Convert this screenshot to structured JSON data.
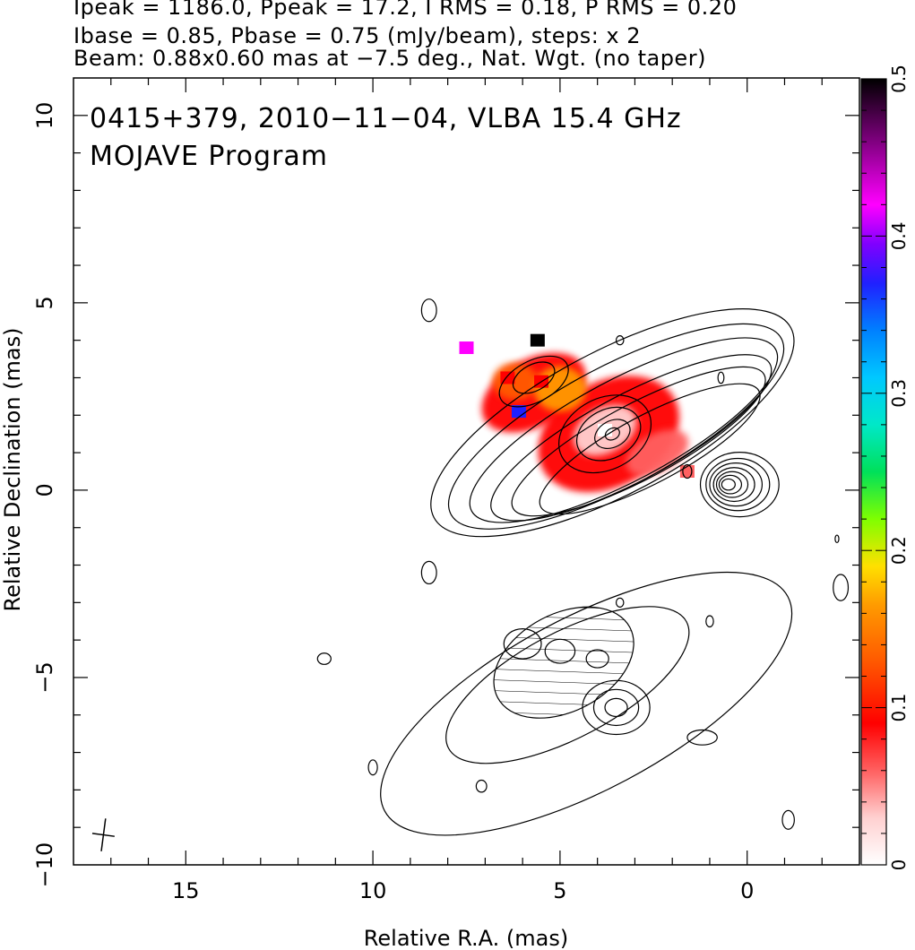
{
  "header": {
    "line1": "Ipeak = 1186.0, Ppeak = 17.2, I RMS = 0.18, P RMS = 0.20",
    "line2": "Ibase = 0.85, Pbase = 0.75 (mJy/beam), steps: x 2",
    "line3": "Beam: 0.88x0.60 mas at −7.5 deg., Nat. Wgt. (no taper)"
  },
  "chart_data": {
    "type": "heatmap",
    "title": "0415+379, 2010−11−04, VLBA 15.4 GHz",
    "subtitle": "MOJAVE Program",
    "xlabel": "Relative R.A. (mas)",
    "ylabel": "Relative Declination (mas)",
    "xlim": [
      18,
      -3
    ],
    "ylim": [
      -10,
      11
    ],
    "x_ticks": [
      15,
      10,
      5,
      0
    ],
    "x_tick_labels": [
      "15",
      "10",
      "5",
      "0"
    ],
    "y_ticks": [
      10,
      5,
      0,
      -5,
      -10
    ],
    "y_tick_labels": [
      "10",
      "5",
      "0",
      "−5",
      "−10"
    ],
    "colorbar": {
      "min": 0,
      "max": 0.5,
      "ticks": [
        0,
        0.1,
        0.2,
        0.3,
        0.4,
        0.5
      ],
      "tick_labels": [
        "0",
        "0.1",
        "0.2",
        "0.3",
        "0.4",
        "0.5"
      ]
    },
    "beam": {
      "major_mas": 0.88,
      "minor_mas": 0.6,
      "pa_deg": -7.5
    },
    "upper_panel": {
      "core_position_mas": [
        -0.2,
        0.1
      ],
      "polarized_patches": [
        {
          "x": 3.8,
          "y": 1.6,
          "fraction": 0.02
        },
        {
          "x": 5.5,
          "y": 2.9,
          "fraction": 0.1
        },
        {
          "x": 6.4,
          "y": 3.0,
          "fraction": 0.12
        },
        {
          "x": 1.6,
          "y": 0.5,
          "fraction": 0.08
        },
        {
          "x": 5.6,
          "y": 4.0,
          "fraction": 0.5
        },
        {
          "x": 7.5,
          "y": 3.8,
          "fraction": 0.42
        },
        {
          "x": 6.1,
          "y": 2.1,
          "fraction": 0.37
        }
      ]
    },
    "lower_panel": {
      "offset_dec_mas": -6
    }
  }
}
